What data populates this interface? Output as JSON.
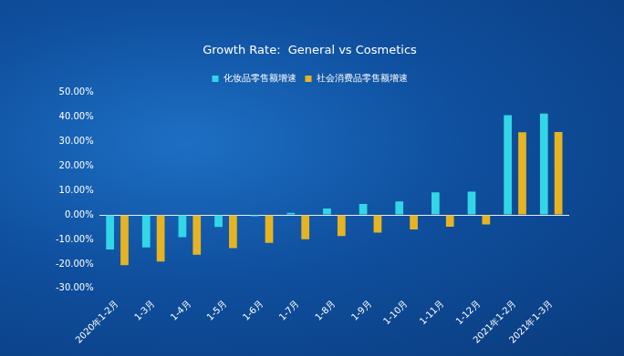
{
  "chart_data": {
    "type": "bar",
    "title": "Growth Rate:  General vs Cosmetics",
    "categories": [
      "2020年1-2月",
      "1-3月",
      "1-4月",
      "1-5月",
      "1-6月",
      "1-7月",
      "1-8月",
      "1-9月",
      "1-10月",
      "1-11月",
      "1-12月",
      "2021年1-2月",
      "2021年1-3月"
    ],
    "series": [
      {
        "name": "化妆品零售额增速",
        "color": "#33d6e6",
        "values": [
          -14.1,
          -13.2,
          -9.1,
          -4.9,
          -0.5,
          0.9,
          2.6,
          4.5,
          5.5,
          9.2,
          9.5,
          40.7,
          41.4
        ]
      },
      {
        "name": "社会消费品零售额增速",
        "color": "#e6b422",
        "values": [
          -20.5,
          -19.0,
          -16.2,
          -13.5,
          -11.4,
          -9.9,
          -8.6,
          -7.2,
          -5.9,
          -4.8,
          -3.9,
          33.8,
          33.9
        ]
      }
    ],
    "ylim": [
      -30,
      50
    ],
    "yticks": [
      {
        "value": -30,
        "label": "-30.00%"
      },
      {
        "value": -20,
        "label": "-20.00%"
      },
      {
        "value": -10,
        "label": "-10.00%"
      },
      {
        "value": 0,
        "label": "0.00%"
      },
      {
        "value": 10,
        "label": "10.00%"
      },
      {
        "value": 20,
        "label": "20.00%"
      },
      {
        "value": 30,
        "label": "30.00%"
      },
      {
        "value": 40,
        "label": "40.00%"
      },
      {
        "value": 50,
        "label": "50.00%"
      }
    ],
    "grid": false,
    "legend": "top"
  }
}
